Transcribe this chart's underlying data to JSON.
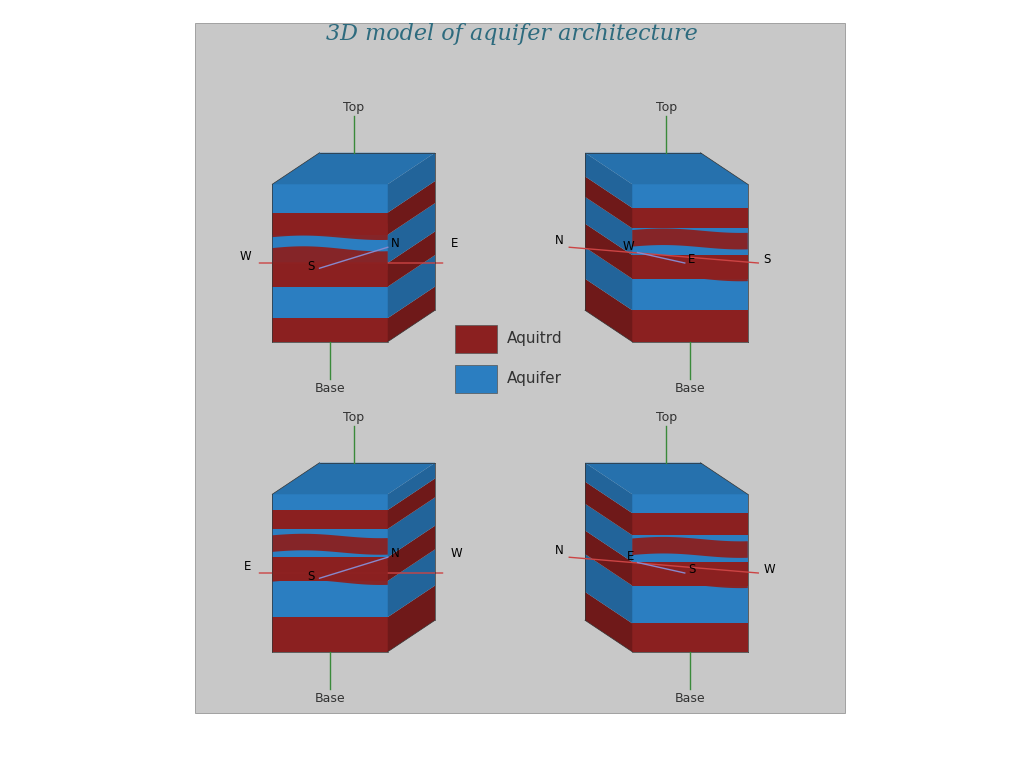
{
  "title": "3D model of aquifer architecture",
  "title_color": "#2e6b7e",
  "title_fontsize": 16,
  "title_style": "italic",
  "background_color": "#c8c8c8",
  "panel_bg": "#c8c8c8",
  "aquitrd_color": "#8B2020",
  "aquifer_color": "#2B7EC1",
  "top_face_aquitrd": "#A03030",
  "top_face_aquifer": "#3A8FD0",
  "axis_color": "#3a8a3a",
  "label_color": "#1a1a1a",
  "label_fontsize": 8.5,
  "compass_line_color_red": "#cc4444",
  "compass_line_color_blue": "#8888cc",
  "legend_aquitrd": "Aquitrd",
  "legend_aquifer": "Aquifer"
}
